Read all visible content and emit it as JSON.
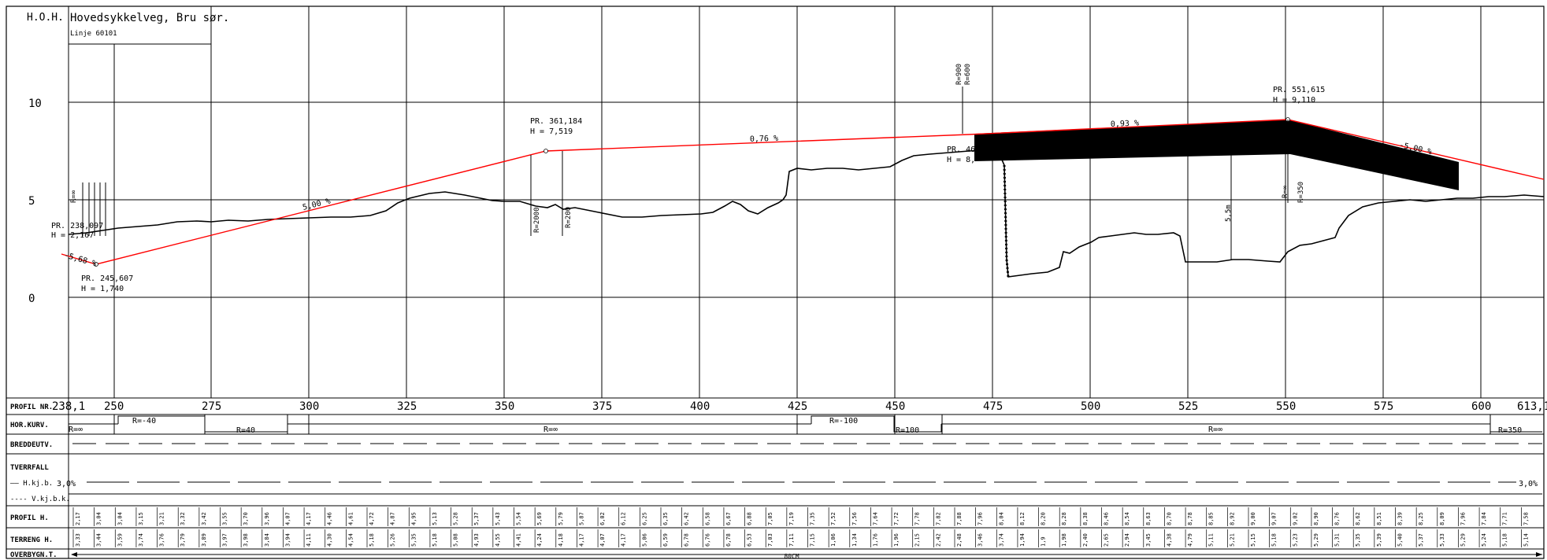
{
  "title_block": {
    "hoh_label": "H.O.H.",
    "title": "Hovedsykkelveg, Bru sør.",
    "subtitle": "Linje 60101"
  },
  "elevation_labels": [
    "10",
    "5",
    "0"
  ],
  "station_labels": [
    "250",
    "275",
    "300",
    "325",
    "350",
    "375",
    "400",
    "425",
    "450",
    "475",
    "500",
    "525",
    "550",
    "575",
    "600"
  ],
  "station_start": "238,1",
  "station_end": "613,1",
  "pr_annotations": [
    {
      "pr": "PR. 238,097",
      "h": "H = 2,167"
    },
    {
      "pr": "PR. 245,607",
      "h": "H = 1,740"
    },
    {
      "pr": "PR. 361,184",
      "h": "H = 7,519"
    },
    {
      "pr": "PR. 46",
      "h": "H = 8,"
    },
    {
      "pr": "PR. 551,615",
      "h": "H = 9,110"
    }
  ],
  "grade_labels": [
    "-5,68 %",
    "5,00 %",
    "0,76 %",
    "0,93 %",
    "-5,00 %"
  ],
  "radius_labels": [
    "R=∞",
    "R=2000",
    "R=200",
    "R=900",
    "R=600",
    "R=∞",
    "R=350"
  ],
  "depth_label": "5,5m",
  "band_labels": [
    "PROFIL NR.",
    "HOR.KURV.",
    "BREDDEUTV.",
    "TVERRFALL",
    "—— H.kj.b.",
    "---- V.kj.b.k.",
    "PROFIL H.",
    "TERRENG H.",
    "OVERBYGN.T."
  ],
  "horizontal_curves": [
    "R=∞",
    "R=-40",
    "R=40",
    "R=∞",
    "R=-100",
    "R=100",
    "R=∞",
    "R=350"
  ],
  "crossfall": {
    "left": "3,0%",
    "right": "3,0%"
  },
  "overbygning": "80CM",
  "profile_heights": [
    "2,17",
    "3,04",
    "3,04",
    "3,15",
    "3,21",
    "3,32",
    "3,42",
    "3,55",
    "3,70",
    "3,96",
    "4,07",
    "4,17",
    "4,46",
    "4,61",
    "4,72",
    "4,87",
    "4,95",
    "5,13",
    "5,28",
    "5,37",
    "5,43",
    "5,54",
    "5,69",
    "5,79",
    "5,87",
    "6,02",
    "6,12",
    "6,25",
    "6,35",
    "6,42",
    "6,58",
    "6,67",
    "6,88",
    "7,05",
    "7,19",
    "7,35",
    "7,52",
    "7,56",
    "7,64",
    "7,72",
    "7,78",
    "7,82",
    "7,88",
    "7,96",
    "8,04",
    "8,12",
    "8,20",
    "8,28",
    "8,38",
    "8,46",
    "8,54",
    "8,63",
    "8,70",
    "8,78",
    "8,85",
    "8,92",
    "9,00",
    "9,07",
    "9,02",
    "8,90",
    "8,76",
    "8,62",
    "8,51",
    "8,39",
    "8,25",
    "8,09",
    "7,96",
    "7,84",
    "7,71",
    "7,58"
  ],
  "terrain_heights": [
    "3,33",
    "3,44",
    "3,59",
    "3,74",
    "3,76",
    "3,79",
    "3,89",
    "3,97",
    "3,98",
    "3,84",
    "3,94",
    "4,11",
    "4,30",
    "4,54",
    "5,18",
    "5,26",
    "5,35",
    "5,18",
    "5,08",
    "4,93",
    "4,55",
    "4,41",
    "4,24",
    "4,18",
    "4,17",
    "4,07",
    "4,17",
    "5,06",
    "6,59",
    "6,78",
    "6,76",
    "6,78",
    "6,53",
    "7,03",
    "7,11",
    "7,15",
    "1,06",
    "1,34",
    "1,76",
    "1,96",
    "2,15",
    "2,42",
    "2,48",
    "3,46",
    "3,74",
    "1,94",
    "1,9",
    "1,98",
    "2,40",
    "2,65",
    "2,94",
    "3,45",
    "4,38",
    "4,79",
    "5,11",
    "5,21",
    "5,15",
    "5,18",
    "5,23",
    "5,29",
    "5,31",
    "5,35",
    "5,39",
    "5,40",
    "5,37",
    "5,33",
    "5,29",
    "5,24",
    "5,18",
    "5,14"
  ],
  "colors": {
    "design_line": "#ff0000",
    "ink": "#000000",
    "bridge": "#000000"
  }
}
